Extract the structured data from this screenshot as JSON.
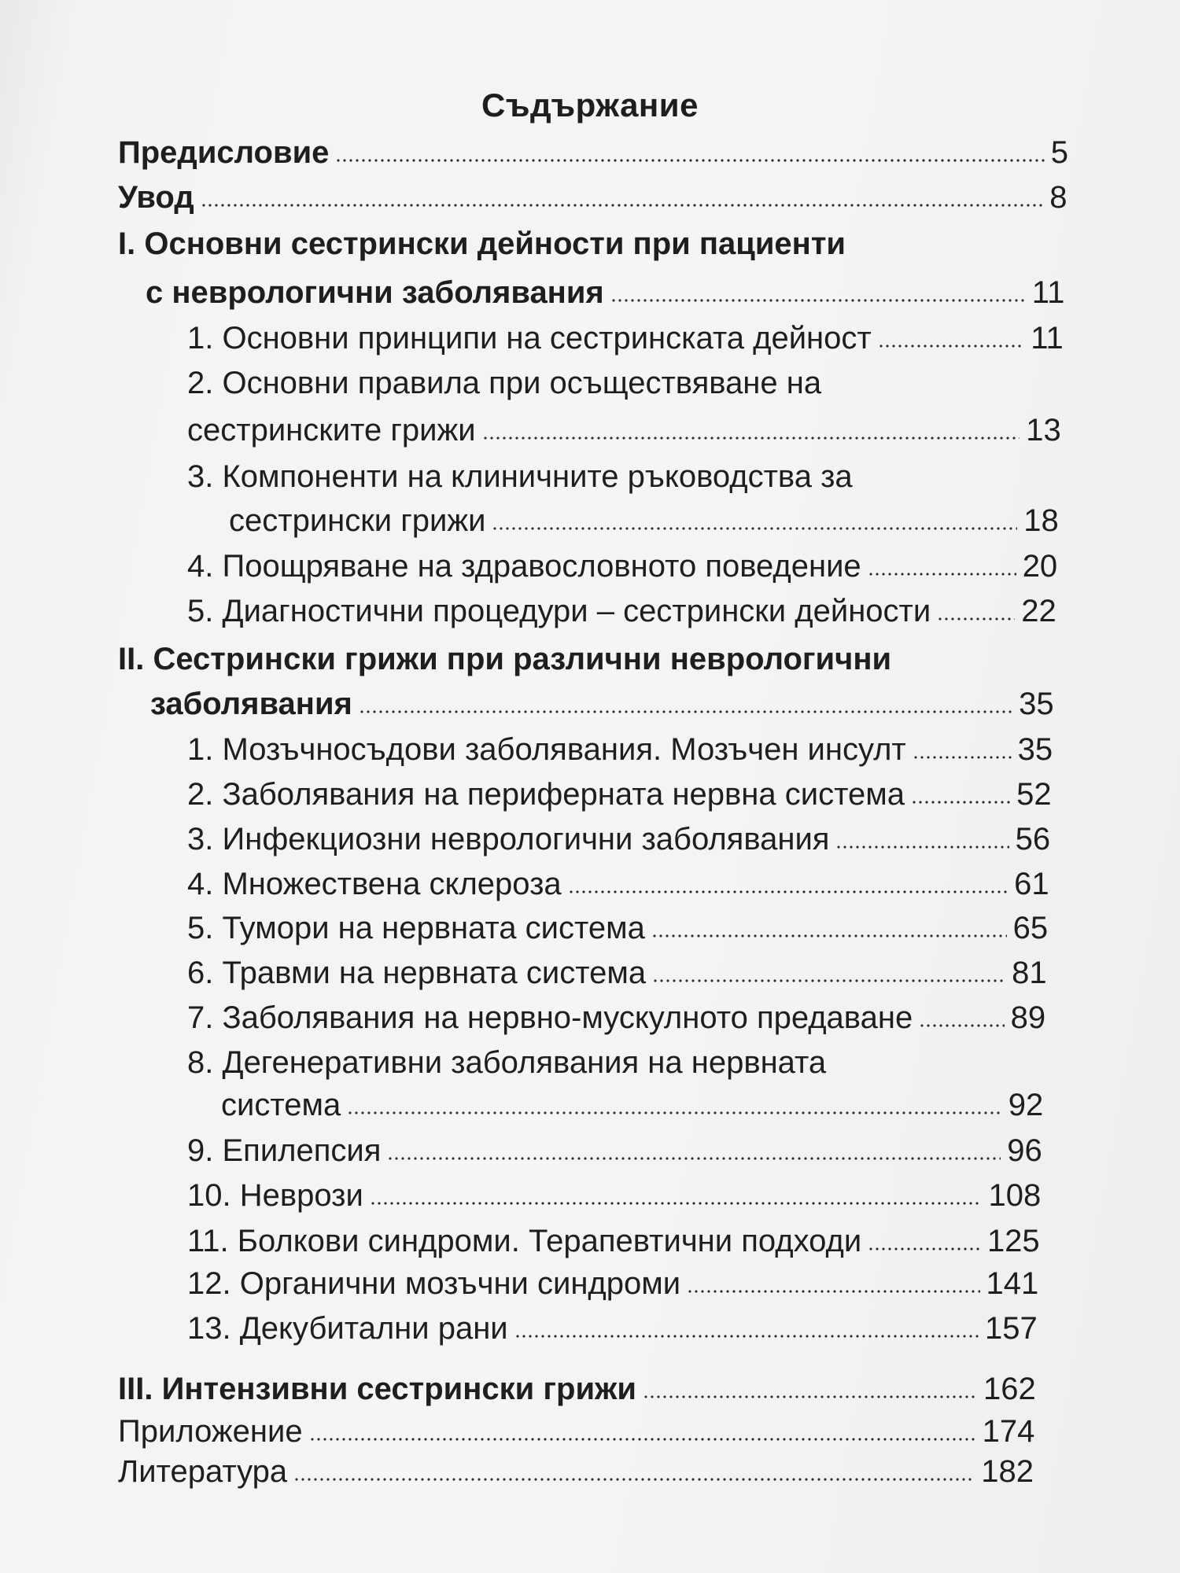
{
  "title": "Съдържание",
  "entries": [
    {
      "lines": [
        "Предисловие"
      ],
      "page": "5",
      "bold": true,
      "level": 0
    },
    {
      "lines": [
        "Увод"
      ],
      "page": "8",
      "bold": true,
      "level": 0
    },
    {
      "lines": [
        "I. Основни сестрински дейности при пациенти",
        "с неврологични заболявания"
      ],
      "page": "11",
      "bold": true,
      "level": 0
    },
    {
      "lines": [
        "1. Основни принципи на сестринската дейност"
      ],
      "page": "11",
      "bold": false,
      "level": 1
    },
    {
      "lines": [
        "2. Основни правила при осъществяване на",
        "сестринските грижи"
      ],
      "page": "13",
      "bold": false,
      "level": 1
    },
    {
      "lines": [
        "3. Компоненти на клиничните ръководства за",
        "сестрински грижи"
      ],
      "page": "18",
      "bold": false,
      "level": 1
    },
    {
      "lines": [
        "4. Поощряване на здравословното поведение"
      ],
      "page": "20",
      "bold": false,
      "level": 1
    },
    {
      "lines": [
        "5. Диагностични процедури – сестрински дейности"
      ],
      "page": "22",
      "bold": false,
      "level": 1
    },
    {
      "lines": [
        "II. Сестрински грижи при различни неврологични",
        "заболявания"
      ],
      "page": "35",
      "bold": true,
      "level": 0
    },
    {
      "lines": [
        "1. Мозъчносъдови заболявания. Мозъчен инсулт"
      ],
      "page": "35",
      "bold": false,
      "level": 1
    },
    {
      "lines": [
        "2. Заболявания на периферната нервна система"
      ],
      "page": "52",
      "bold": false,
      "level": 1
    },
    {
      "lines": [
        "3. Инфекциозни неврологични заболявания"
      ],
      "page": "56",
      "bold": false,
      "level": 1
    },
    {
      "lines": [
        "4. Множествена склероза"
      ],
      "page": "61",
      "bold": false,
      "level": 1
    },
    {
      "lines": [
        "5. Тумори на нервната система"
      ],
      "page": "65",
      "bold": false,
      "level": 1
    },
    {
      "lines": [
        "6. Травми на нервната система"
      ],
      "page": "81",
      "bold": false,
      "level": 1
    },
    {
      "lines": [
        "7. Заболявания на нервно-мускулното предаване"
      ],
      "page": "89",
      "bold": false,
      "level": 1
    },
    {
      "lines": [
        "8. Дегенеративни заболявания на нервната",
        "система"
      ],
      "page": "92",
      "bold": false,
      "level": 1
    },
    {
      "lines": [
        "9. Епилепсия"
      ],
      "page": "96",
      "bold": false,
      "level": 1
    },
    {
      "lines": [
        "10. Неврози"
      ],
      "page": "108",
      "bold": false,
      "level": 1
    },
    {
      "lines": [
        "11. Болкови синдроми. Терапевтични подходи"
      ],
      "page": "125",
      "bold": false,
      "level": 1
    },
    {
      "lines": [
        "12. Органични мозъчни синдроми"
      ],
      "page": "141",
      "bold": false,
      "level": 1
    },
    {
      "lines": [
        "13. Декубитални рани"
      ],
      "page": "157",
      "bold": false,
      "level": 1
    },
    {
      "lines": [
        "III. Интензивни сестрински грижи"
      ],
      "page": "162",
      "bold": true,
      "level": 0
    },
    {
      "lines": [
        "Приложение"
      ],
      "page": "174",
      "bold": false,
      "level": 0
    },
    {
      "lines": [
        "Литература"
      ],
      "page": "182",
      "bold": false,
      "level": 0
    }
  ]
}
